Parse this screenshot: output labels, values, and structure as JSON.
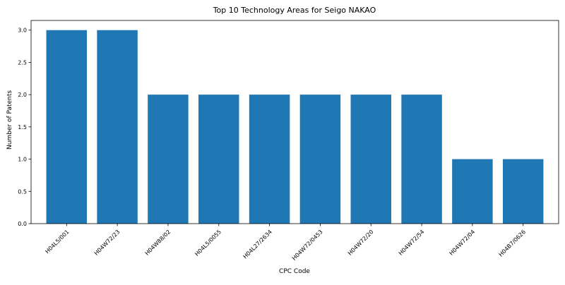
{
  "chart_data": {
    "type": "bar",
    "title": "Top 10 Technology Areas for Seigo NAKAO",
    "xlabel": "CPC Code",
    "ylabel": "Number of Patents",
    "categories": [
      "H04L5/001",
      "H04W72/23",
      "H04W88/02",
      "H04L5/0055",
      "H04L27/2634",
      "H04W72/0453",
      "H04W72/20",
      "H04W72/54",
      "H04W72/04",
      "H04B7/0626"
    ],
    "values": [
      3,
      3,
      2,
      2,
      2,
      2,
      2,
      2,
      1,
      1
    ],
    "ylim": [
      0,
      3.15
    ],
    "yticks": [
      "0.0",
      "0.5",
      "1.0",
      "1.5",
      "2.0",
      "2.5",
      "3.0"
    ],
    "grid": false,
    "bar_color": "#1f77b4"
  }
}
